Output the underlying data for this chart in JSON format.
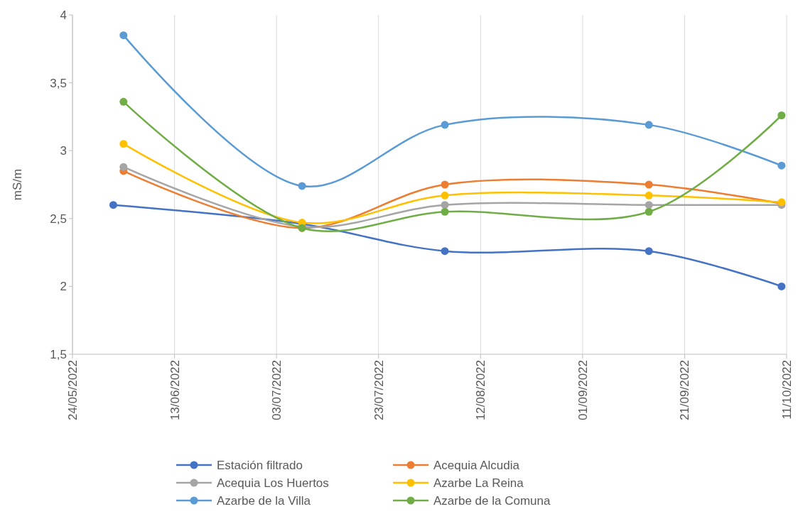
{
  "chart_data": {
    "type": "line",
    "ylabel": "mS/m",
    "xlim": [
      "2022-05-24",
      "2022-10-11"
    ],
    "xticks": [
      {
        "value": "2022-05-24",
        "label": "24/05/2022"
      },
      {
        "value": "2022-06-13",
        "label": "13/06/2022"
      },
      {
        "value": "2022-07-03",
        "label": "03/07/2022"
      },
      {
        "value": "2022-07-23",
        "label": "23/07/2022"
      },
      {
        "value": "2022-08-12",
        "label": "12/08/2022"
      },
      {
        "value": "2022-09-01",
        "label": "01/09/2022"
      },
      {
        "value": "2022-09-21",
        "label": "21/09/2022"
      },
      {
        "value": "2022-10-11",
        "label": "11/10/2022"
      }
    ],
    "ylim": [
      1.5,
      4
    ],
    "yticks": [
      {
        "value": 1.5,
        "label": "1,5"
      },
      2,
      {
        "value": 2.5,
        "label": "2,5"
      },
      3,
      {
        "value": 3.5,
        "label": "3,5"
      },
      4
    ],
    "grid": "x",
    "legend": "bottom",
    "marker": "circle",
    "line_style": "solid",
    "series": [
      {
        "name": "Estación filtrado",
        "color": "#4472c4",
        "x": [
          "2022-06-01",
          "2022-07-08",
          "2022-08-05",
          "2022-09-14",
          "2022-10-10"
        ],
        "values": [
          2.6,
          2.46,
          2.26,
          2.26,
          2.0
        ]
      },
      {
        "name": "Acequia Alcudia",
        "color": "#ed7d31",
        "x": [
          "2022-06-03",
          "2022-07-08",
          "2022-08-05",
          "2022-09-14",
          "2022-10-10"
        ],
        "values": [
          2.85,
          2.43,
          2.75,
          2.75,
          2.61
        ]
      },
      {
        "name": "Acequia Los Huertos",
        "color": "#a5a5a5",
        "x": [
          "2022-06-03",
          "2022-07-08",
          "2022-08-05",
          "2022-09-14",
          "2022-10-10"
        ],
        "values": [
          2.88,
          2.44,
          2.6,
          2.6,
          2.6
        ]
      },
      {
        "name": "Azarbe La Reina",
        "color": "#ffc000",
        "x": [
          "2022-06-03",
          "2022-07-08",
          "2022-08-05",
          "2022-09-14",
          "2022-10-10"
        ],
        "values": [
          3.05,
          2.47,
          2.67,
          2.67,
          2.62
        ]
      },
      {
        "name": "Azarbe de la Villa",
        "color": "#5b9bd5",
        "x": [
          "2022-06-03",
          "2022-07-08",
          "2022-08-05",
          "2022-09-14",
          "2022-10-10"
        ],
        "values": [
          3.85,
          2.74,
          3.19,
          3.19,
          2.89
        ]
      },
      {
        "name": "Azarbe de la Comuna",
        "color": "#70ad47",
        "x": [
          "2022-06-03",
          "2022-07-08",
          "2022-08-05",
          "2022-09-14",
          "2022-10-10"
        ],
        "values": [
          3.36,
          2.43,
          2.55,
          2.55,
          3.26
        ]
      }
    ]
  }
}
